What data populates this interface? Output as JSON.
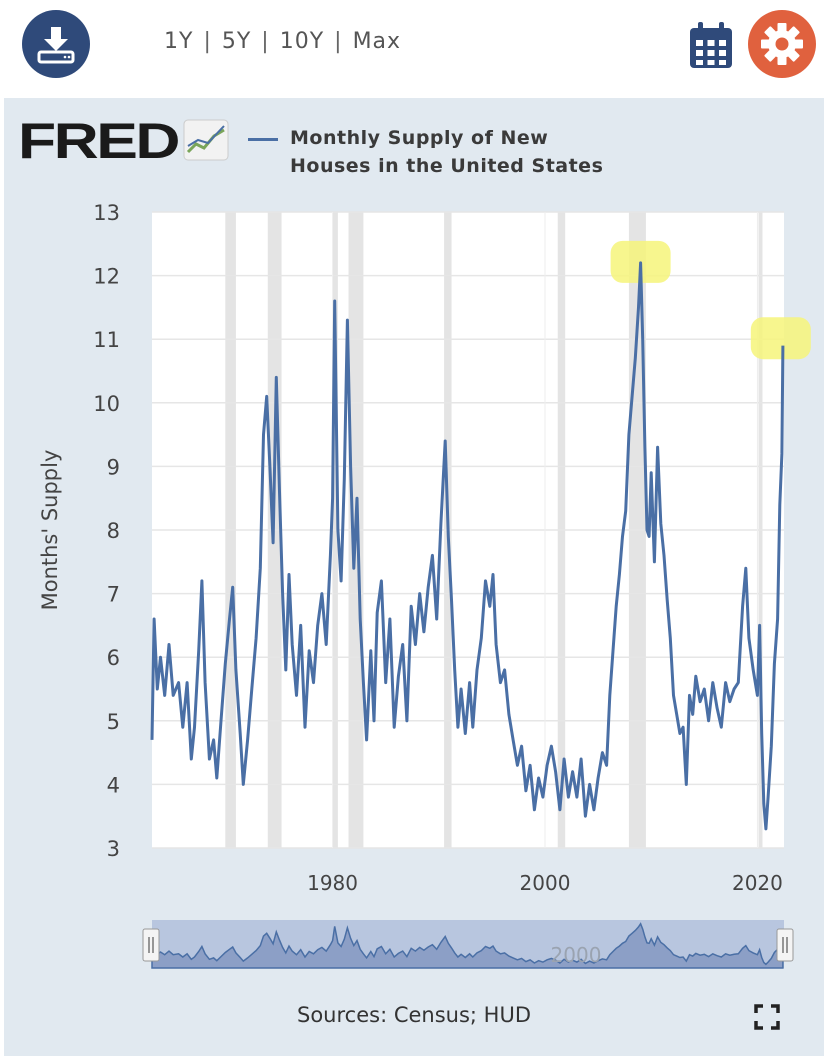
{
  "toolbar": {
    "ranges": [
      "1Y",
      "5Y",
      "10Y",
      "Max"
    ],
    "separator": "|",
    "download_icon": "download-icon",
    "calendar_icon": "calendar-icon",
    "settings_icon": "gear-icon",
    "accent_blue": "#2f4a7a",
    "accent_orange": "#e0613e"
  },
  "brand": {
    "logo_text": "FRED",
    "logo_icon": "fred-chart-icon"
  },
  "chart_data": {
    "type": "line",
    "title": "Monthly Supply of New Houses in the United States",
    "ylabel": "Months' Supply",
    "xlabel": "",
    "ylim": [
      3,
      13
    ],
    "xlim": [
      1963.0,
      2022.5
    ],
    "yticks": [
      3,
      4,
      5,
      6,
      7,
      8,
      9,
      10,
      11,
      12,
      13
    ],
    "xticks": [
      1980,
      2000,
      2020
    ],
    "grid": true,
    "line_color": "#4a6fa5",
    "recessions": [
      [
        1969.9,
        1970.9
      ],
      [
        1973.9,
        1975.2
      ],
      [
        1980.0,
        1980.5
      ],
      [
        1981.5,
        1982.9
      ],
      [
        1990.5,
        1991.2
      ],
      [
        2001.2,
        2001.9
      ],
      [
        2007.9,
        2009.5
      ],
      [
        2020.1,
        2020.3
      ]
    ],
    "highlights": [
      [
        2009.0,
        12.2
      ],
      [
        2022.2,
        11.0
      ]
    ],
    "series": [
      {
        "values": [
          [
            1963.0,
            4.7
          ],
          [
            1963.2,
            6.6
          ],
          [
            1963.5,
            5.5
          ],
          [
            1963.8,
            6.0
          ],
          [
            1964.2,
            5.4
          ],
          [
            1964.6,
            6.2
          ],
          [
            1965.0,
            5.4
          ],
          [
            1965.5,
            5.6
          ],
          [
            1965.9,
            4.9
          ],
          [
            1966.3,
            5.6
          ],
          [
            1966.7,
            4.4
          ],
          [
            1967.0,
            4.9
          ],
          [
            1967.4,
            6.1
          ],
          [
            1967.7,
            7.2
          ],
          [
            1968.0,
            5.6
          ],
          [
            1968.4,
            4.4
          ],
          [
            1968.8,
            4.7
          ],
          [
            1969.1,
            4.1
          ],
          [
            1969.5,
            5.0
          ],
          [
            1969.9,
            5.9
          ],
          [
            1970.3,
            6.6
          ],
          [
            1970.6,
            7.1
          ],
          [
            1970.9,
            5.8
          ],
          [
            1971.3,
            4.8
          ],
          [
            1971.6,
            4.0
          ],
          [
            1972.0,
            4.7
          ],
          [
            1972.4,
            5.5
          ],
          [
            1972.8,
            6.3
          ],
          [
            1973.2,
            7.4
          ],
          [
            1973.5,
            9.5
          ],
          [
            1973.8,
            10.1
          ],
          [
            1974.1,
            9.0
          ],
          [
            1974.4,
            7.8
          ],
          [
            1974.7,
            10.4
          ],
          [
            1975.0,
            8.6
          ],
          [
            1975.3,
            7.0
          ],
          [
            1975.6,
            5.8
          ],
          [
            1975.9,
            7.3
          ],
          [
            1976.2,
            6.2
          ],
          [
            1976.6,
            5.4
          ],
          [
            1977.0,
            6.5
          ],
          [
            1977.4,
            4.9
          ],
          [
            1977.8,
            6.1
          ],
          [
            1978.2,
            5.6
          ],
          [
            1978.6,
            6.5
          ],
          [
            1979.0,
            7.0
          ],
          [
            1979.4,
            6.2
          ],
          [
            1979.8,
            7.6
          ],
          [
            1980.0,
            8.5
          ],
          [
            1980.2,
            11.6
          ],
          [
            1980.5,
            8.0
          ],
          [
            1980.8,
            7.2
          ],
          [
            1981.1,
            8.8
          ],
          [
            1981.4,
            11.3
          ],
          [
            1981.7,
            9.0
          ],
          [
            1982.0,
            7.4
          ],
          [
            1982.3,
            8.5
          ],
          [
            1982.6,
            6.6
          ],
          [
            1982.9,
            5.6
          ],
          [
            1983.2,
            4.7
          ],
          [
            1983.6,
            6.1
          ],
          [
            1983.9,
            5.0
          ],
          [
            1984.2,
            6.7
          ],
          [
            1984.6,
            7.2
          ],
          [
            1985.0,
            5.6
          ],
          [
            1985.4,
            6.6
          ],
          [
            1985.8,
            4.9
          ],
          [
            1986.2,
            5.7
          ],
          [
            1986.6,
            6.2
          ],
          [
            1987.0,
            5.0
          ],
          [
            1987.4,
            6.8
          ],
          [
            1987.8,
            6.2
          ],
          [
            1988.2,
            7.0
          ],
          [
            1988.6,
            6.4
          ],
          [
            1989.0,
            7.1
          ],
          [
            1989.4,
            7.6
          ],
          [
            1989.8,
            6.6
          ],
          [
            1990.2,
            8.1
          ],
          [
            1990.6,
            9.4
          ],
          [
            1990.9,
            7.9
          ],
          [
            1991.2,
            6.9
          ],
          [
            1991.5,
            5.8
          ],
          [
            1991.8,
            4.9
          ],
          [
            1992.1,
            5.5
          ],
          [
            1992.5,
            4.8
          ],
          [
            1992.9,
            5.6
          ],
          [
            1993.2,
            4.9
          ],
          [
            1993.6,
            5.8
          ],
          [
            1994.0,
            6.3
          ],
          [
            1994.4,
            7.2
          ],
          [
            1994.8,
            6.8
          ],
          [
            1995.1,
            7.3
          ],
          [
            1995.4,
            6.2
          ],
          [
            1995.8,
            5.6
          ],
          [
            1996.2,
            5.8
          ],
          [
            1996.6,
            5.1
          ],
          [
            1997.0,
            4.7
          ],
          [
            1997.4,
            4.3
          ],
          [
            1997.8,
            4.6
          ],
          [
            1998.2,
            3.9
          ],
          [
            1998.6,
            4.3
          ],
          [
            1999.0,
            3.6
          ],
          [
            1999.4,
            4.1
          ],
          [
            1999.8,
            3.8
          ],
          [
            2000.2,
            4.3
          ],
          [
            2000.6,
            4.6
          ],
          [
            2001.0,
            4.2
          ],
          [
            2001.4,
            3.6
          ],
          [
            2001.8,
            4.4
          ],
          [
            2002.2,
            3.8
          ],
          [
            2002.6,
            4.2
          ],
          [
            2003.0,
            3.8
          ],
          [
            2003.4,
            4.4
          ],
          [
            2003.8,
            3.5
          ],
          [
            2004.2,
            4.0
          ],
          [
            2004.6,
            3.6
          ],
          [
            2005.0,
            4.1
          ],
          [
            2005.4,
            4.5
          ],
          [
            2005.8,
            4.3
          ],
          [
            2006.1,
            5.4
          ],
          [
            2006.4,
            6.1
          ],
          [
            2006.7,
            6.8
          ],
          [
            2007.0,
            7.3
          ],
          [
            2007.3,
            7.9
          ],
          [
            2007.6,
            8.3
          ],
          [
            2007.9,
            9.5
          ],
          [
            2008.2,
            10.1
          ],
          [
            2008.5,
            10.7
          ],
          [
            2008.8,
            11.5
          ],
          [
            2009.0,
            12.2
          ],
          [
            2009.2,
            11.0
          ],
          [
            2009.4,
            9.3
          ],
          [
            2009.6,
            8.0
          ],
          [
            2009.8,
            7.9
          ],
          [
            2010.0,
            8.9
          ],
          [
            2010.3,
            7.5
          ],
          [
            2010.6,
            9.3
          ],
          [
            2010.9,
            8.1
          ],
          [
            2011.2,
            7.6
          ],
          [
            2011.5,
            6.9
          ],
          [
            2011.8,
            6.3
          ],
          [
            2012.1,
            5.4
          ],
          [
            2012.4,
            5.1
          ],
          [
            2012.7,
            4.8
          ],
          [
            2013.0,
            4.9
          ],
          [
            2013.3,
            4.0
          ],
          [
            2013.6,
            5.4
          ],
          [
            2013.9,
            5.1
          ],
          [
            2014.2,
            5.7
          ],
          [
            2014.6,
            5.3
          ],
          [
            2015.0,
            5.5
          ],
          [
            2015.4,
            5.0
          ],
          [
            2015.8,
            5.6
          ],
          [
            2016.2,
            5.2
          ],
          [
            2016.6,
            4.9
          ],
          [
            2017.0,
            5.6
          ],
          [
            2017.4,
            5.3
          ],
          [
            2017.8,
            5.5
          ],
          [
            2018.2,
            5.6
          ],
          [
            2018.6,
            6.8
          ],
          [
            2018.9,
            7.4
          ],
          [
            2019.2,
            6.3
          ],
          [
            2019.6,
            5.8
          ],
          [
            2020.0,
            5.4
          ],
          [
            2020.2,
            6.5
          ],
          [
            2020.4,
            4.8
          ],
          [
            2020.6,
            3.7
          ],
          [
            2020.8,
            3.3
          ],
          [
            2021.0,
            3.8
          ],
          [
            2021.3,
            4.6
          ],
          [
            2021.6,
            5.9
          ],
          [
            2021.9,
            6.6
          ],
          [
            2022.1,
            8.4
          ],
          [
            2022.3,
            9.2
          ],
          [
            2022.4,
            10.9
          ]
        ]
      }
    ],
    "sources": "Sources: Census; HUD",
    "navigator_label": "2000"
  },
  "footer": {
    "fullscreen_icon": "fullscreen-icon"
  }
}
